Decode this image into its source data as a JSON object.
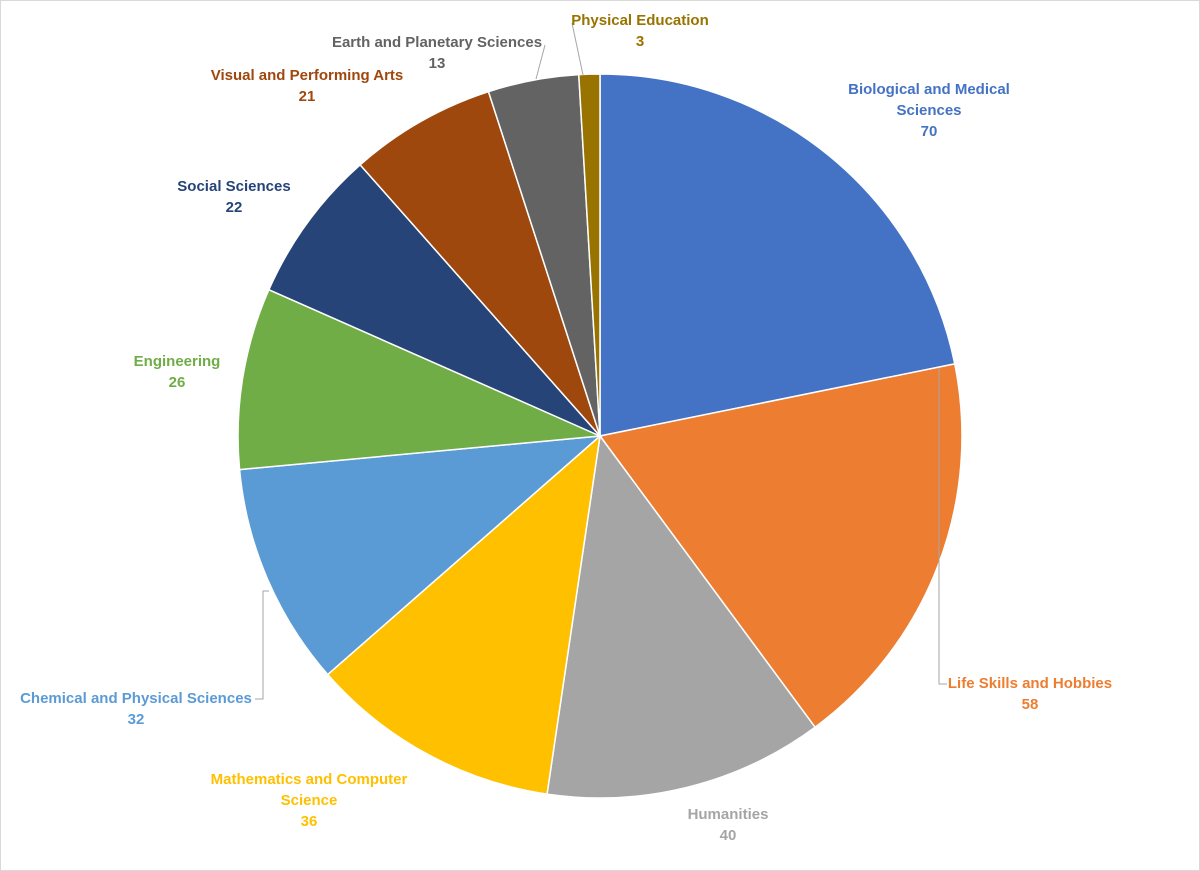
{
  "chart_data": {
    "type": "pie",
    "title": "",
    "start_angle_deg": 0,
    "direction": "clockwise",
    "slices": [
      {
        "label": "Biological and Medical Sciences",
        "value": 70,
        "color": "#4472c4",
        "label_color": "#4472c4"
      },
      {
        "label": "Life Skills and Hobbies",
        "value": 58,
        "color": "#ed7d31",
        "label_color": "#ed7d31"
      },
      {
        "label": "Humanities",
        "value": 40,
        "color": "#a5a5a5",
        "label_color": "#a5a5a5"
      },
      {
        "label": "Mathematics and Computer Science",
        "value": 36,
        "color": "#ffc000",
        "label_color": "#ffc000"
      },
      {
        "label": "Chemical and Physical Sciences",
        "value": 32,
        "color": "#5b9bd5",
        "label_color": "#5b9bd5"
      },
      {
        "label": "Engineering",
        "value": 26,
        "color": "#70ad47",
        "label_color": "#70ad47"
      },
      {
        "label": "Social Sciences",
        "value": 22,
        "color": "#264478",
        "label_color": "#264478"
      },
      {
        "label": "Visual and Performing Arts",
        "value": 21,
        "color": "#9e480e",
        "label_color": "#9e480e"
      },
      {
        "label": "Earth and Planetary Sciences",
        "value": 13,
        "color": "#636363",
        "label_color": "#636363"
      },
      {
        "label": "Physical Education",
        "value": 3,
        "color": "#997300",
        "label_color": "#997300"
      }
    ],
    "legend": "none",
    "data_labels": "category name and value, outside end"
  }
}
